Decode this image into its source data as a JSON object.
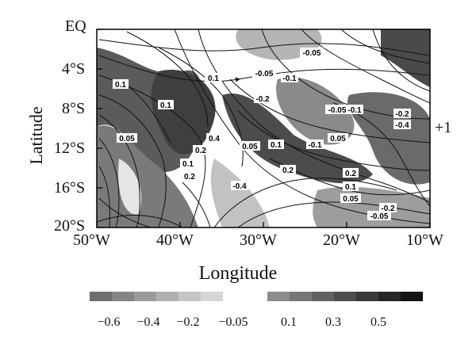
{
  "map": {
    "ylabel": "Latitude",
    "xlabel": "Longitude",
    "side_label": "+1",
    "lat_ticks": [
      "EQ",
      "4°S",
      "8°S",
      "12°S",
      "16°S",
      "20°S"
    ],
    "lon_ticks": [
      "50°W",
      "40°W",
      "30°W",
      "20°W",
      "10°W"
    ],
    "contour_labels": [
      "-0.05",
      "0.1",
      "-0.05",
      "-0.1",
      "0.1",
      "-0.2",
      "0.1",
      "-0.05",
      "-0.1",
      "0.05",
      "0.4",
      "0.1",
      "0.05",
      "-0.1",
      "0.05",
      "0.2",
      "0.1",
      "0.2",
      "0.2",
      "-0.4",
      "0.2",
      "0.1",
      "0.05",
      "-0.2",
      "-0.05",
      "-0.2",
      "-0.4"
    ]
  },
  "colorbar": {
    "negative_labels": [
      "−0.6",
      "−0.4",
      "−0.2",
      "−0.05"
    ],
    "positive_labels": [
      "0.1",
      "0.3",
      "0.5"
    ],
    "negative_colors": [
      "#6e6e6e",
      "#858585",
      "#9a9a9a",
      "#b0b0b0",
      "#c4c4c4",
      "#d6d6d6"
    ],
    "positive_colors": [
      "#8c8c8c",
      "#767676",
      "#616161",
      "#4d4d4d",
      "#393939",
      "#262626",
      "#141414"
    ]
  }
}
